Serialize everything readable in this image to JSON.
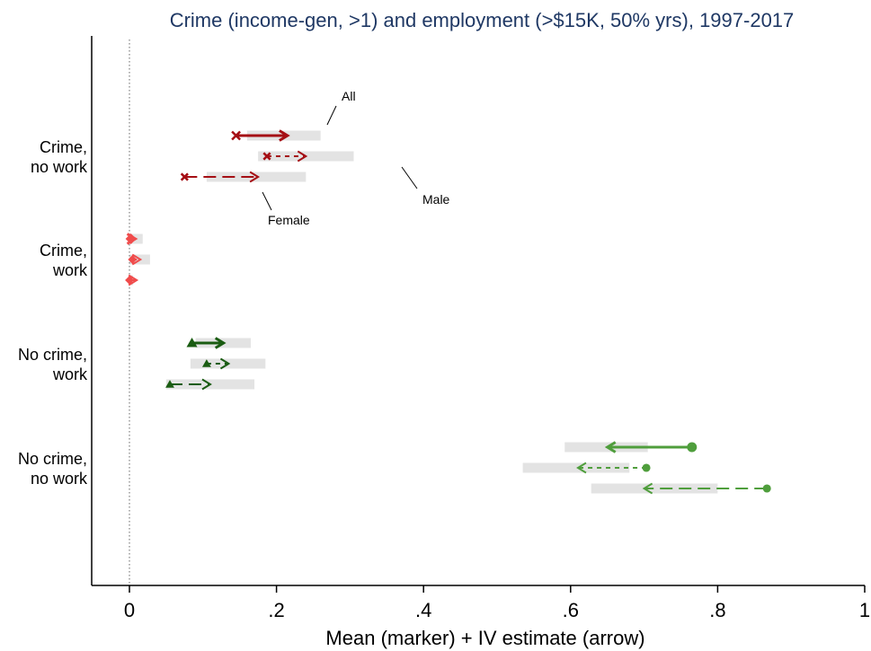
{
  "chart_data": {
    "type": "interval",
    "title": "Crime (income-gen, >1) and employment (>$15K, 50% yrs), 1997-2017",
    "xlabel": "Mean (marker) + IV estimate (arrow)",
    "ylabel": "",
    "xlim": [
      0,
      1
    ],
    "xticks": [
      {
        "value": 0,
        "label": "0"
      },
      {
        "value": 0.2,
        "label": ".2"
      },
      {
        "value": 0.4,
        "label": ".4"
      },
      {
        "value": 0.6,
        "label": ".6"
      },
      {
        "value": 0.8,
        "label": ".8"
      },
      {
        "value": 1,
        "label": "1"
      }
    ],
    "reference_line_x": 0,
    "categories": [
      {
        "label_lines": [
          "Crime,",
          "no work"
        ],
        "color": "#a50f15",
        "marker": "x",
        "rows": [
          {
            "group": "All",
            "mean": 0.145,
            "iv": 0.215,
            "ci": [
              0.16,
              0.26
            ]
          },
          {
            "group": "Male",
            "mean": 0.187,
            "iv": 0.24,
            "ci": [
              0.175,
              0.305
            ]
          },
          {
            "group": "Female",
            "mean": 0.075,
            "iv": 0.175,
            "ci": [
              0.105,
              0.24
            ]
          }
        ]
      },
      {
        "label_lines": [
          "Crime,",
          "work"
        ],
        "color": "#f04b4b",
        "marker": "diamond",
        "rows": [
          {
            "group": "All",
            "mean": 0.002,
            "iv": 0.008,
            "ci": [
              0.0,
              0.018
            ]
          },
          {
            "group": "Male",
            "mean": 0.004,
            "iv": 0.015,
            "ci": [
              0.0,
              0.028
            ]
          },
          {
            "group": "Female",
            "mean": 0.0,
            "iv": 0.01,
            "ci": [
              0.0,
              0.005
            ]
          }
        ]
      },
      {
        "label_lines": [
          "No crime,",
          "work"
        ],
        "color": "#1a5c12",
        "marker": "triangle",
        "rows": [
          {
            "group": "All",
            "mean": 0.085,
            "iv": 0.128,
            "ci": [
              0.09,
              0.165
            ]
          },
          {
            "group": "Male",
            "mean": 0.105,
            "iv": 0.135,
            "ci": [
              0.083,
              0.185
            ]
          },
          {
            "group": "Female",
            "mean": 0.055,
            "iv": 0.11,
            "ci": [
              0.05,
              0.17
            ]
          }
        ]
      },
      {
        "label_lines": [
          "No crime,",
          "no work"
        ],
        "color": "#4f9e3c",
        "marker": "circle",
        "rows": [
          {
            "group": "All",
            "mean": 0.765,
            "iv": 0.65,
            "ci": [
              0.592,
              0.705
            ]
          },
          {
            "group": "Male",
            "mean": 0.703,
            "iv": 0.61,
            "ci": [
              0.535,
              0.68
            ]
          },
          {
            "group": "Female",
            "mean": 0.867,
            "iv": 0.7,
            "ci": [
              0.628,
              0.8
            ]
          }
        ]
      }
    ],
    "annotations": [
      {
        "text": "All"
      },
      {
        "text": "Male"
      },
      {
        "text": "Female"
      }
    ],
    "grid": false,
    "legend": "none"
  }
}
